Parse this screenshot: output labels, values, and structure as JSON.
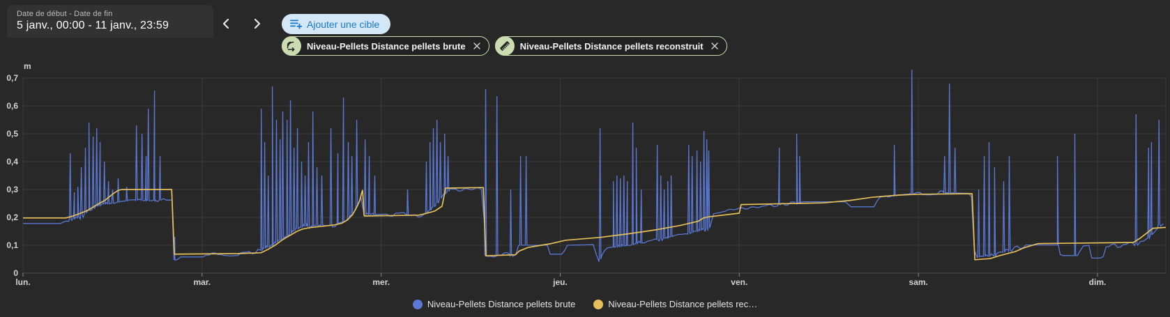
{
  "header": {
    "date_range": {
      "label": "Date de début - Date de fin",
      "value": "5 janv., 00:00 - 11 janv., 23:59"
    },
    "nav": {
      "prev_icon": "chevron-left",
      "next_icon": "chevron-right"
    },
    "add_target_button": {
      "label": "Ajouter une cible",
      "icon": "playlist-plus-icon",
      "bg": "#d3e7f6",
      "color": "#1878c8"
    },
    "chips": [
      {
        "label": "Niveau-Pellets Distance pellets brute",
        "icon": "signal-distance-icon",
        "avatar_bg": "#cbdcb0"
      },
      {
        "label": "Niveau-Pellets Distance pellets reconstruit",
        "icon": "ruler-icon",
        "avatar_bg": "#cbdcb0"
      }
    ]
  },
  "chart_data": {
    "type": "line",
    "title": "",
    "y_axis": {
      "unit": "m",
      "min": 0,
      "max": 0.7,
      "tick_labels": [
        "0",
        "0,1",
        "0,2",
        "0,3",
        "0,4",
        "0,5",
        "0,6",
        "0,7"
      ]
    },
    "x_axis": {
      "tick_labels": [
        "lun.",
        "mar.",
        "mer.",
        "jeu.",
        "ven.",
        "sam.",
        "dim."
      ]
    },
    "x_range": [
      0,
      6.381
    ],
    "grid": true,
    "legend_position": "bottom",
    "legend": [
      {
        "label": "Niveau-Pellets Distance pellets brute"
      },
      {
        "label": "Niveau-Pellets Distance pellets rec…"
      }
    ],
    "series": [
      {
        "name": "Niveau-Pellets Distance pellets brute",
        "color": "#5a78d4",
        "baseline": [
          [
            0,
            0.178
          ],
          [
            0.214,
            0.178
          ],
          [
            0.241,
            0.19
          ],
          [
            0.319,
            0.205
          ],
          [
            0.417,
            0.243
          ],
          [
            0.514,
            0.252
          ],
          [
            0.553,
            0.258
          ],
          [
            0.67,
            0.262
          ],
          [
            0.833,
            0.262
          ],
          [
            0.841,
            0.05
          ],
          [
            0.857,
            0.044
          ],
          [
            0.876,
            0.058
          ],
          [
            1.0,
            0.058
          ],
          [
            1.02,
            0.068
          ],
          [
            1.215,
            0.07
          ],
          [
            1.273,
            0.076
          ],
          [
            1.332,
            0.082
          ],
          [
            1.39,
            0.1
          ],
          [
            1.448,
            0.122
          ],
          [
            1.507,
            0.147
          ],
          [
            1.546,
            0.166
          ],
          [
            1.74,
            0.176
          ],
          [
            1.8,
            0.186
          ],
          [
            1.838,
            0.21
          ],
          [
            1.865,
            0.24
          ],
          [
            1.888,
            0.268
          ],
          [
            1.904,
            0.21
          ],
          [
            2.208,
            0.208
          ],
          [
            2.266,
            0.22
          ],
          [
            2.363,
            0.29
          ],
          [
            2.383,
            0.296
          ],
          [
            2.57,
            0.3
          ],
          [
            2.582,
            0.062
          ],
          [
            2.753,
            0.068
          ],
          [
            2.768,
            0.1
          ],
          [
            2.932,
            0.1
          ],
          [
            2.944,
            0.068
          ],
          [
            3.018,
            0.068
          ],
          [
            3.033,
            0.1
          ],
          [
            3.193,
            0.102
          ],
          [
            3.208,
            0.032
          ],
          [
            3.228,
            0.055
          ],
          [
            3.243,
            0.088
          ],
          [
            3.376,
            0.1
          ],
          [
            3.532,
            0.118
          ],
          [
            3.668,
            0.138
          ],
          [
            3.765,
            0.15
          ],
          [
            3.835,
            0.162
          ],
          [
            3.859,
            0.22
          ],
          [
            4.0,
            0.234
          ],
          [
            4.155,
            0.242
          ],
          [
            4.33,
            0.25
          ],
          [
            4.35,
            0.256
          ],
          [
            4.602,
            0.256
          ],
          [
            4.614,
            0.238
          ],
          [
            4.758,
            0.238
          ],
          [
            4.77,
            0.262
          ],
          [
            4.895,
            0.286
          ],
          [
            5.167,
            0.288
          ],
          [
            5.295,
            0.286
          ],
          [
            5.314,
            0.058
          ],
          [
            5.431,
            0.062
          ],
          [
            5.497,
            0.08
          ],
          [
            5.563,
            0.096
          ],
          [
            5.594,
            0.101
          ],
          [
            5.781,
            0.101
          ],
          [
            5.793,
            0.063
          ],
          [
            5.898,
            0.063
          ],
          [
            5.909,
            0.096
          ],
          [
            5.956,
            0.1
          ],
          [
            5.967,
            0.054
          ],
          [
            6.03,
            0.054
          ],
          [
            6.045,
            0.094
          ],
          [
            6.256,
            0.108
          ],
          [
            6.291,
            0.128
          ],
          [
            6.318,
            0.152
          ],
          [
            6.337,
            0.172
          ],
          [
            6.381,
            0.19
          ]
        ],
        "spikes": [
          [
            0.265,
            0.43
          ],
          [
            0.288,
            0.29
          ],
          [
            0.308,
            0.31
          ],
          [
            0.327,
            0.38
          ],
          [
            0.35,
            0.45
          ],
          [
            0.37,
            0.54
          ],
          [
            0.393,
            0.49
          ],
          [
            0.413,
            0.52
          ],
          [
            0.432,
            0.47
          ],
          [
            0.456,
            0.4
          ],
          [
            0.479,
            0.33
          ],
          [
            0.502,
            0.3
          ],
          [
            0.533,
            0.34
          ],
          [
            0.58,
            0.31
          ],
          [
            0.635,
            0.53
          ],
          [
            0.666,
            0.5
          ],
          [
            0.689,
            0.42
          ],
          [
            0.701,
            0.59
          ],
          [
            0.736,
            0.655
          ],
          [
            0.767,
            0.42
          ],
          [
            0.849,
            0.13
          ],
          [
            1.332,
            0.59
          ],
          [
            1.351,
            0.47
          ],
          [
            1.371,
            0.35
          ],
          [
            1.394,
            0.67
          ],
          [
            1.417,
            0.55
          ],
          [
            1.437,
            0.48
          ],
          [
            1.452,
            0.58
          ],
          [
            1.476,
            0.55
          ],
          [
            1.495,
            0.62
          ],
          [
            1.515,
            0.45
          ],
          [
            1.534,
            0.52
          ],
          [
            1.557,
            0.4
          ],
          [
            1.577,
            0.35
          ],
          [
            1.596,
            0.47
          ],
          [
            1.62,
            0.58
          ],
          [
            1.643,
            0.38
          ],
          [
            1.67,
            0.35
          ],
          [
            1.721,
            0.52
          ],
          [
            1.76,
            0.43
          ],
          [
            1.791,
            0.63
          ],
          [
            1.818,
            0.47
          ],
          [
            1.838,
            0.42
          ],
          [
            1.865,
            0.55
          ],
          [
            1.912,
            0.48
          ],
          [
            1.935,
            0.42
          ],
          [
            1.966,
            0.35
          ],
          [
            2.149,
            0.3
          ],
          [
            2.254,
            0.4
          ],
          [
            2.274,
            0.47
          ],
          [
            2.293,
            0.52
          ],
          [
            2.313,
            0.55
          ],
          [
            2.332,
            0.47
          ],
          [
            2.356,
            0.5
          ],
          [
            2.375,
            0.42
          ],
          [
            2.585,
            0.66
          ],
          [
            2.648,
            0.635
          ],
          [
            2.725,
            0.3
          ],
          [
            2.78,
            0.42
          ],
          [
            2.811,
            0.42
          ],
          [
            3.224,
            0.52
          ],
          [
            3.298,
            0.33
          ],
          [
            3.318,
            0.35
          ],
          [
            3.337,
            0.34
          ],
          [
            3.357,
            0.35
          ],
          [
            3.376,
            0.33
          ],
          [
            3.407,
            0.54
          ],
          [
            3.426,
            0.45
          ],
          [
            3.454,
            0.3
          ],
          [
            3.543,
            0.46
          ],
          [
            3.563,
            0.35
          ],
          [
            3.582,
            0.3
          ],
          [
            3.602,
            0.33
          ],
          [
            3.621,
            0.35
          ],
          [
            3.719,
            0.46
          ],
          [
            3.738,
            0.42
          ],
          [
            3.765,
            0.44
          ],
          [
            3.785,
            0.4
          ],
          [
            3.804,
            0.51
          ],
          [
            3.82,
            0.48
          ],
          [
            3.831,
            0.44
          ],
          [
            4.225,
            0.45
          ],
          [
            4.322,
            0.5
          ],
          [
            4.338,
            0.42
          ],
          [
            4.867,
            0.46
          ],
          [
            4.965,
            0.73
          ],
          [
            5.148,
            0.42
          ],
          [
            5.175,
            0.68
          ],
          [
            5.206,
            0.45
          ],
          [
            5.338,
            0.3
          ],
          [
            5.369,
            0.42
          ],
          [
            5.396,
            0.47
          ],
          [
            5.427,
            0.38
          ],
          [
            5.478,
            0.33
          ],
          [
            5.509,
            0.42
          ],
          [
            5.778,
            0.42
          ],
          [
            5.875,
            0.5
          ],
          [
            6.217,
            0.57
          ],
          [
            6.287,
            0.45
          ],
          [
            6.303,
            0.47
          ],
          [
            6.345,
            0.55
          ]
        ],
        "noise_zones": [
          [
            0.24,
            0.55,
            0.012
          ],
          [
            0.56,
            0.8,
            0.006
          ],
          [
            1.0,
            1.33,
            0.008
          ],
          [
            1.33,
            1.75,
            0.012
          ],
          [
            1.9,
            2.35,
            0.008
          ],
          [
            2.38,
            2.56,
            0.01
          ],
          [
            2.58,
            2.75,
            0.008
          ],
          [
            3.24,
            3.84,
            0.01
          ],
          [
            3.86,
            4.33,
            0.008
          ],
          [
            4.77,
            5.15,
            0.007
          ],
          [
            5.32,
            5.6,
            0.01
          ],
          [
            6.05,
            6.3,
            0.008
          ],
          [
            6.32,
            6.381,
            0.01
          ]
        ]
      },
      {
        "name": "Niveau-Pellets Distance pellets reconstruit",
        "color": "#e5c05a",
        "points": [
          [
            0,
            0.198
          ],
          [
            0.24,
            0.198
          ],
          [
            0.28,
            0.205
          ],
          [
            0.31,
            0.212
          ],
          [
            0.36,
            0.225
          ],
          [
            0.42,
            0.248
          ],
          [
            0.46,
            0.262
          ],
          [
            0.48,
            0.273
          ],
          [
            0.51,
            0.288
          ],
          [
            0.53,
            0.296
          ],
          [
            0.55,
            0.3
          ],
          [
            0.83,
            0.3
          ],
          [
            0.845,
            0.068
          ],
          [
            1.2,
            0.07
          ],
          [
            1.33,
            0.073
          ],
          [
            1.37,
            0.086
          ],
          [
            1.41,
            0.101
          ],
          [
            1.45,
            0.12
          ],
          [
            1.49,
            0.135
          ],
          [
            1.53,
            0.15
          ],
          [
            1.56,
            0.158
          ],
          [
            1.6,
            0.163
          ],
          [
            1.67,
            0.168
          ],
          [
            1.74,
            0.173
          ],
          [
            1.78,
            0.179
          ],
          [
            1.81,
            0.19
          ],
          [
            1.84,
            0.21
          ],
          [
            1.86,
            0.232
          ],
          [
            1.88,
            0.26
          ],
          [
            1.89,
            0.285
          ],
          [
            1.896,
            0.297
          ],
          [
            1.905,
            0.205
          ],
          [
            2.21,
            0.208
          ],
          [
            2.25,
            0.214
          ],
          [
            2.3,
            0.223
          ],
          [
            2.34,
            0.24
          ],
          [
            2.36,
            0.305
          ],
          [
            2.57,
            0.307
          ],
          [
            2.585,
            0.062
          ],
          [
            2.75,
            0.066
          ],
          [
            2.77,
            0.079
          ],
          [
            2.82,
            0.092
          ],
          [
            2.95,
            0.106
          ],
          [
            3.03,
            0.118
          ],
          [
            3.22,
            0.128
          ],
          [
            3.38,
            0.141
          ],
          [
            3.54,
            0.156
          ],
          [
            3.67,
            0.171
          ],
          [
            3.77,
            0.186
          ],
          [
            3.8,
            0.198
          ],
          [
            3.83,
            0.202
          ],
          [
            4.0,
            0.215
          ],
          [
            4.01,
            0.246
          ],
          [
            4.47,
            0.252
          ],
          [
            4.62,
            0.261
          ],
          [
            4.74,
            0.272
          ],
          [
            4.89,
            0.28
          ],
          [
            5.0,
            0.283
          ],
          [
            5.3,
            0.285
          ],
          [
            5.315,
            0.048
          ],
          [
            5.4,
            0.052
          ],
          [
            5.46,
            0.064
          ],
          [
            5.54,
            0.077
          ],
          [
            5.59,
            0.091
          ],
          [
            5.67,
            0.106
          ],
          [
            6.2,
            0.11
          ],
          [
            6.24,
            0.126
          ],
          [
            6.28,
            0.146
          ],
          [
            6.31,
            0.161
          ],
          [
            6.381,
            0.164
          ]
        ]
      }
    ]
  }
}
